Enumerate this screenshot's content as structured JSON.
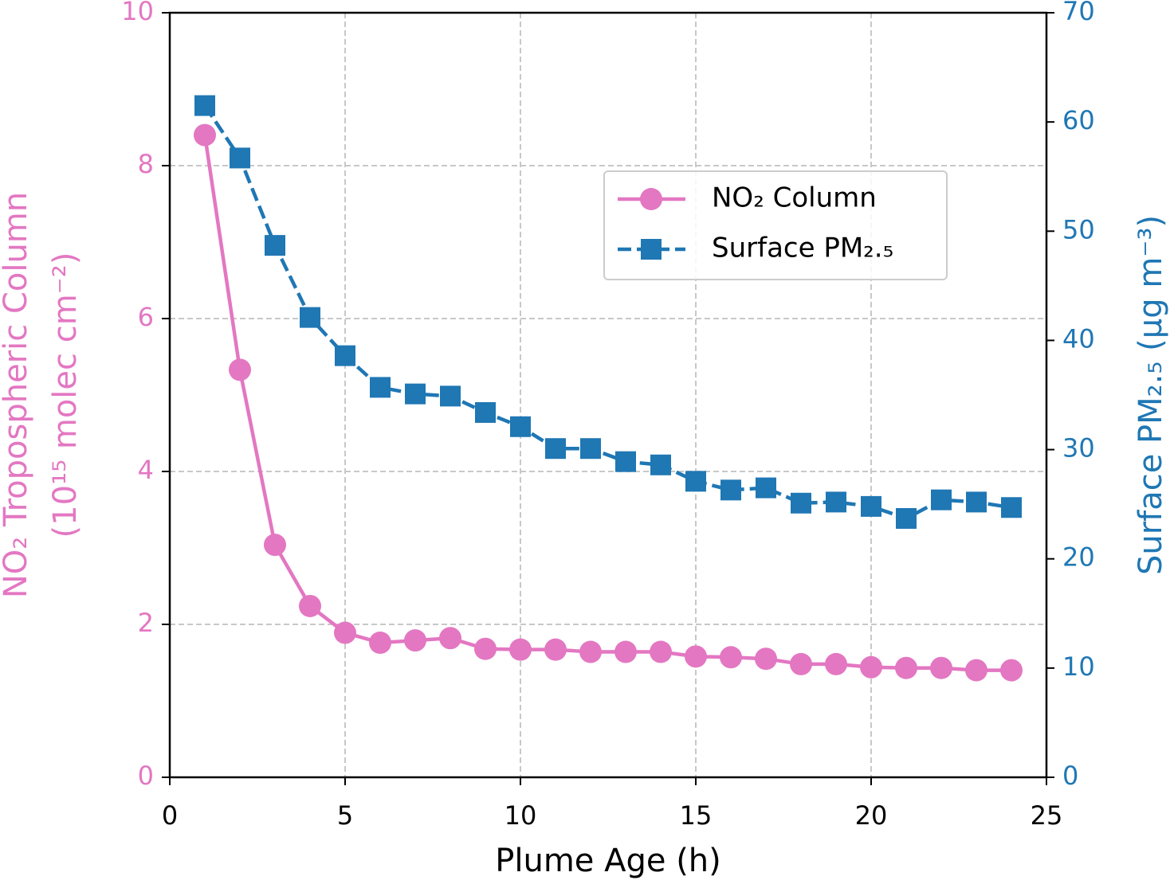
{
  "chart_data": {
    "type": "line",
    "x_label": "Plume Age (h)",
    "y_label": [
      "NO₂ Tropospheric Column",
      "(10¹⁵ molec cm⁻²)"
    ],
    "y2_label": "Surface PM₂.₅ (μg m⁻³)",
    "x": [
      1,
      2,
      3,
      4,
      5,
      6,
      7,
      8,
      9,
      10,
      11,
      12,
      13,
      14,
      15,
      16,
      17,
      18,
      19,
      20,
      21,
      22,
      23,
      24
    ],
    "series": [
      {
        "name": "NO₂ Column",
        "color": "#e377c2",
        "linestyle": "solid",
        "marker": "circle",
        "axis": "y",
        "values": [
          8.4,
          5.33,
          3.04,
          2.24,
          1.89,
          1.76,
          1.79,
          1.82,
          1.68,
          1.67,
          1.67,
          1.64,
          1.64,
          1.64,
          1.58,
          1.57,
          1.55,
          1.48,
          1.48,
          1.44,
          1.43,
          1.43,
          1.4,
          1.4
        ]
      },
      {
        "name": "Surface PM₂.₅",
        "color": "#1f77b4",
        "linestyle": "dashed",
        "marker": "square",
        "axis": "y2",
        "values": [
          61.5,
          56.7,
          48.7,
          42.1,
          38.6,
          35.7,
          35.1,
          34.9,
          33.4,
          32.1,
          30.1,
          30.1,
          28.9,
          28.6,
          27.1,
          26.3,
          26.5,
          25.1,
          25.2,
          24.8,
          23.7,
          25.4,
          25.2,
          24.7
        ]
      }
    ],
    "xlim": [
      0,
      25
    ],
    "xticks": [
      0,
      5,
      10,
      15,
      20,
      25
    ],
    "ylim": [
      0,
      10
    ],
    "yticks": [
      0,
      2,
      4,
      6,
      8,
      10
    ],
    "y2lim": [
      0,
      70
    ],
    "y2ticks": [
      0,
      10,
      20,
      30,
      40,
      50,
      60,
      70
    ],
    "grid": true,
    "legend": "upper right"
  }
}
